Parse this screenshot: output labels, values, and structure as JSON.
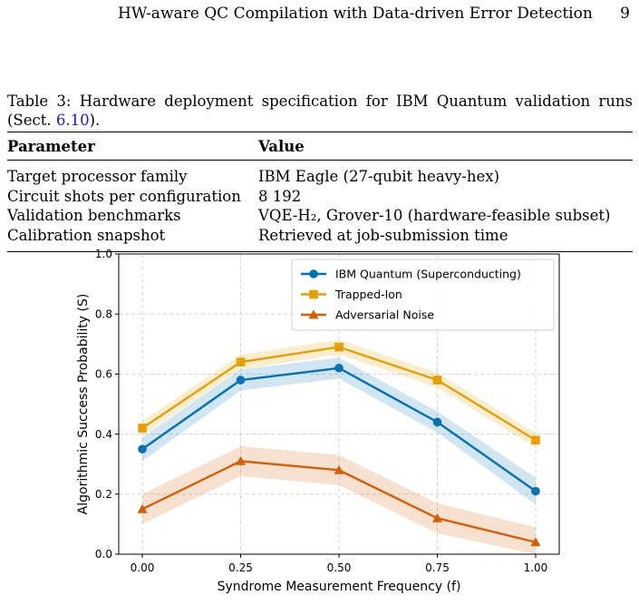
{
  "header": {
    "running_title": "HW-aware QC Compilation with Data-driven Error Detection",
    "page_number": "9"
  },
  "table": {
    "caption_label": "Table 3:",
    "caption_text_line1": "Hardware deployment specification for IBM Quantum validation runs",
    "caption_text_line2_prefix": "(Sect. ",
    "caption_ref": "6.10",
    "caption_text_line2_suffix": ").",
    "columns": [
      "Parameter",
      "Value"
    ],
    "rows": [
      {
        "param": "Target processor family",
        "value": "IBM Eagle (27-qubit heavy-hex)"
      },
      {
        "param": "Circuit shots per configuration",
        "value": "8 192"
      },
      {
        "param": "Validation benchmarks",
        "value": "VQE-H₂, Grover-10 (hardware-feasible subset)"
      },
      {
        "param": "Calibration snapshot",
        "value": "Retrieved at job-submission time"
      }
    ]
  },
  "chart_data": {
    "type": "line",
    "xlabel": "Syndrome Measurement Frequency (f)",
    "ylabel": "Algorithmic Success Probability (S)",
    "x": [
      0.0,
      0.25,
      0.5,
      0.75,
      1.0
    ],
    "x_tick_labels": [
      "0.00",
      "0.25",
      "0.50",
      "0.75",
      "1.00"
    ],
    "y_tick_labels": [
      "0.0",
      "0.2",
      "0.4",
      "0.6",
      "0.8",
      "1.0"
    ],
    "y_ticks": [
      0.0,
      0.2,
      0.4,
      0.6,
      0.8,
      1.0
    ],
    "xlim": [
      -0.06,
      1.06
    ],
    "ylim": [
      0.0,
      1.0
    ],
    "grid": true,
    "legend_position": "top-right",
    "series": [
      {
        "name": "IBM Quantum (Superconducting)",
        "color": "#0072b2",
        "marker": "circle",
        "values": [
          0.35,
          0.58,
          0.62,
          0.44,
          0.21
        ],
        "lower": [
          0.31,
          0.545,
          0.585,
          0.405,
          0.165
        ],
        "upper": [
          0.39,
          0.615,
          0.655,
          0.475,
          0.255
        ]
      },
      {
        "name": "Trapped-Ion",
        "color": "#e69f00",
        "marker": "square",
        "values": [
          0.42,
          0.64,
          0.69,
          0.58,
          0.38
        ],
        "lower": [
          0.395,
          0.615,
          0.665,
          0.555,
          0.355
        ],
        "upper": [
          0.445,
          0.665,
          0.715,
          0.605,
          0.405
        ]
      },
      {
        "name": "Adversarial Noise",
        "color": "#d55e00",
        "marker": "triangle",
        "values": [
          0.15,
          0.31,
          0.28,
          0.12,
          0.04
        ],
        "lower": [
          0.1,
          0.26,
          0.23,
          0.07,
          0.0
        ],
        "upper": [
          0.2,
          0.36,
          0.33,
          0.17,
          0.09
        ]
      }
    ]
  }
}
